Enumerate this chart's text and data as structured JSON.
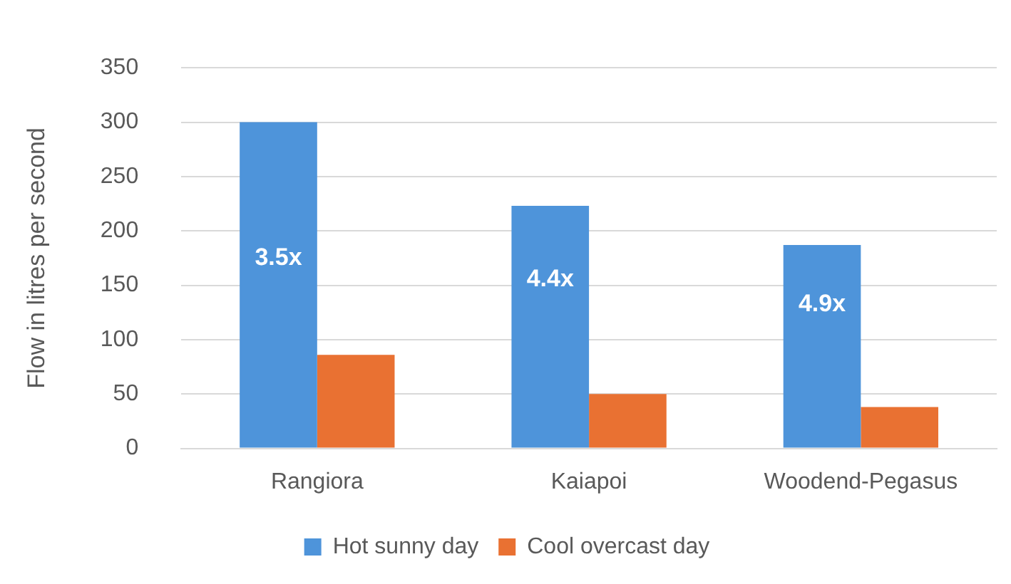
{
  "chart_data": {
    "type": "bar",
    "ylabel": "Flow in litres per second",
    "categories": [
      "Rangiora",
      "Kaiapoi",
      "Woodend-Pegasus"
    ],
    "series": [
      {
        "name": "Hot sunny day",
        "color": "#4e94da",
        "values": [
          300,
          223,
          187
        ]
      },
      {
        "name": "Cool overcast day",
        "color": "#e97132",
        "values": [
          86,
          50,
          38
        ]
      }
    ],
    "ylim": [
      0,
      350
    ],
    "yticks": [
      0,
      50,
      100,
      150,
      200,
      250,
      300,
      350
    ],
    "grid": "y",
    "legend": "bottom",
    "annotations": [
      {
        "text": "3.5x",
        "x": "Rangiora",
        "y": 175
      },
      {
        "text": "4.4x",
        "x": "Kaiapoi",
        "y": 155
      },
      {
        "text": "4.9x",
        "x": "Woodend-Pegasus",
        "y": 132
      }
    ]
  }
}
